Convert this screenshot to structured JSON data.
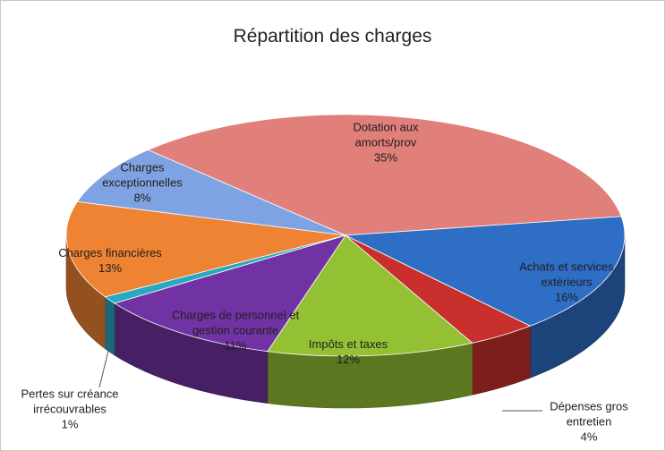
{
  "chart_data": {
    "type": "pie3d",
    "title": "Répartition des charges",
    "series": [
      {
        "name": "Dotation aux amorts/prov",
        "color": "#e17f7b"
      },
      {
        "name": "Achats et services extérieurs",
        "color": "#2f6ec5"
      },
      {
        "name": "Dépenses gros entretien",
        "color": "#c9302d"
      },
      {
        "name": "Impôts et taxes",
        "color": "#93c133"
      },
      {
        "name": "Charges de personnel et gestion courante",
        "color": "#7132a3"
      },
      {
        "name": "Pertes sur créance irrécouvrables",
        "color": "#2aa7c2"
      },
      {
        "name": "Charges financières",
        "color": "#ee8333"
      },
      {
        "name": "Charges exceptionnelles",
        "color": "#7fa3e2"
      }
    ],
    "values": [
      35,
      16,
      4,
      12,
      11,
      1,
      13,
      8
    ],
    "value_labels": [
      "35%",
      "16%",
      "4%",
      "12%",
      "11%",
      "1%",
      "13%",
      "8%"
    ]
  }
}
